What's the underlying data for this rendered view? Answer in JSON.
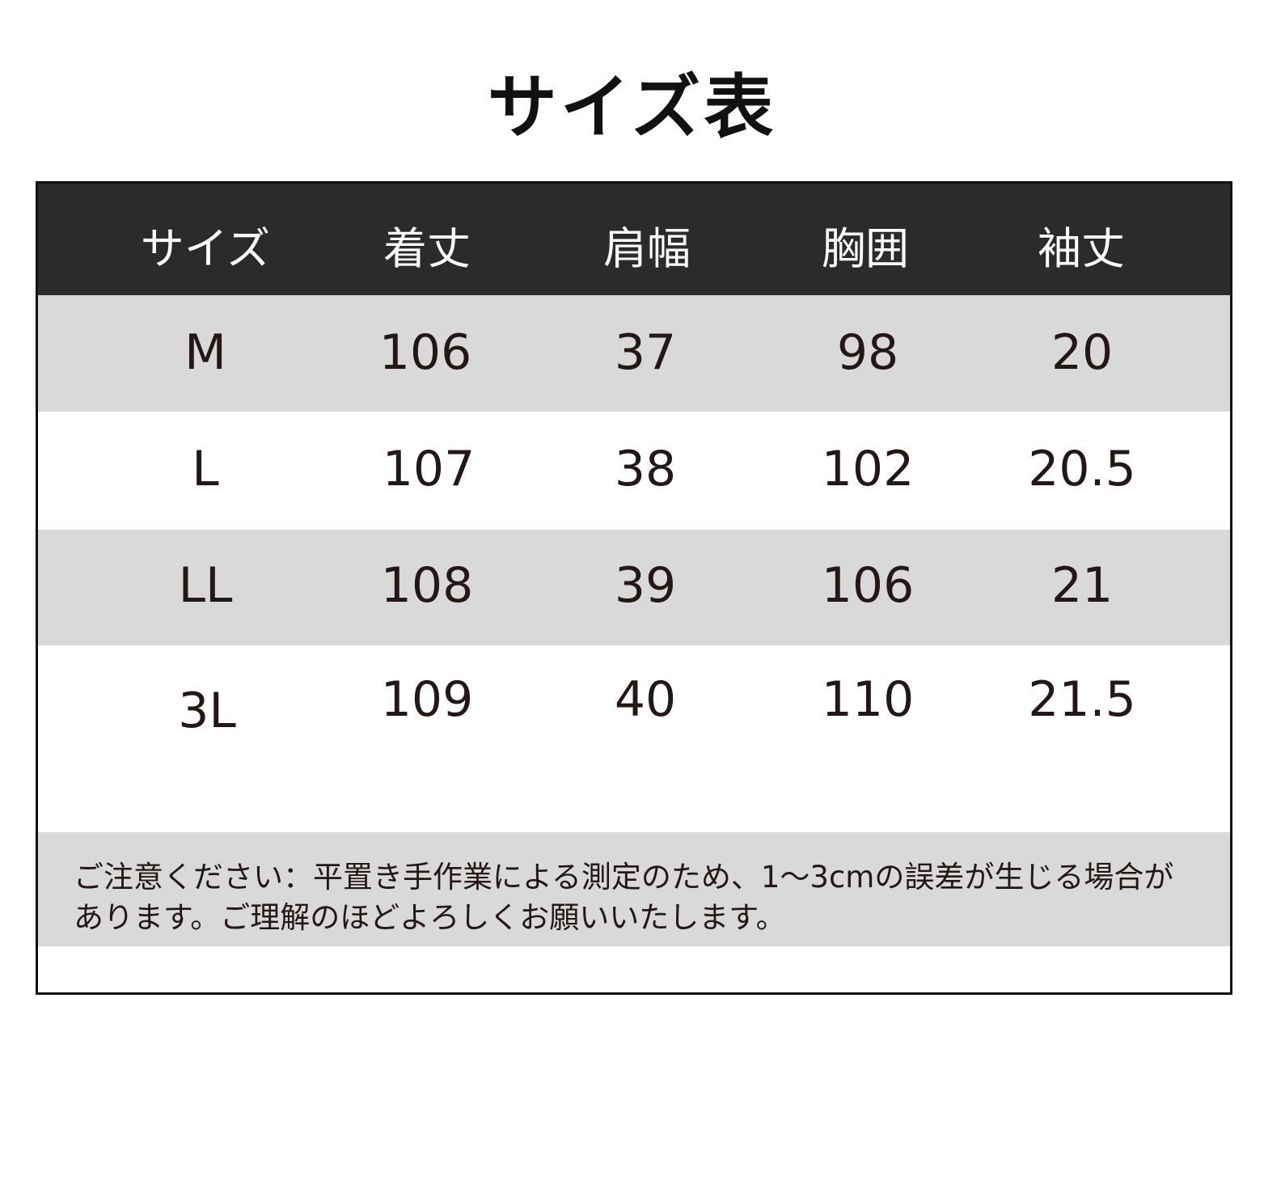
{
  "title": "サイズ表",
  "table": {
    "headers": [
      "サイズ",
      "着丈",
      "肩幅",
      "胸囲",
      "袖丈"
    ],
    "rows": [
      [
        "M",
        "106",
        "37",
        "98",
        "20"
      ],
      [
        "L",
        "107",
        "38",
        "102",
        "20.5"
      ],
      [
        "LL",
        "108",
        "39",
        "106",
        "21"
      ],
      [
        "3L",
        "109",
        "40",
        "110",
        "21.5"
      ]
    ]
  },
  "note": {
    "line1": "ご注意ください：平置き手作業による測定のため、1～3cmの誤差が生じる場合が",
    "line2": "あります。ご理解のほどよろしくお願いいたします。"
  },
  "colors": {
    "header_bg": "#2b2b2b",
    "stripe": "#d9d9d9"
  }
}
